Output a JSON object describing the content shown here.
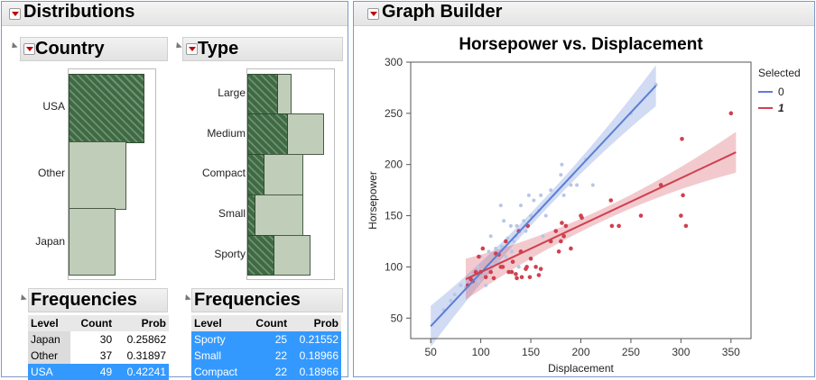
{
  "distributions": {
    "title": "Distributions",
    "country": {
      "title": "Country",
      "categories": [
        "USA",
        "Other",
        "Japan"
      ],
      "frequencies": {
        "title": "Frequencies",
        "headers": [
          "Level",
          "Count",
          "Prob"
        ],
        "rows": [
          {
            "level": "Japan",
            "count": "30",
            "prob": "0.25862",
            "selected": false
          },
          {
            "level": "Other",
            "count": "37",
            "prob": "0.31897",
            "selected": false
          },
          {
            "level": "USA",
            "count": "49",
            "prob": "0.42241",
            "selected": true
          }
        ]
      }
    },
    "type": {
      "title": "Type",
      "categories": [
        "Large",
        "Medium",
        "Compact",
        "Small",
        "Sporty"
      ],
      "frequencies": {
        "title": "Frequencies",
        "headers": [
          "Level",
          "Count",
          "Prob"
        ],
        "rows": [
          {
            "level": "Sporty",
            "count": "25",
            "prob": "0.21552",
            "selected": true
          },
          {
            "level": "Small",
            "count": "22",
            "prob": "0.18966",
            "selected": true
          },
          {
            "level": "Compact",
            "count": "22",
            "prob": "0.18966",
            "selected": true
          }
        ]
      }
    }
  },
  "graph_builder": {
    "title": "Graph Builder"
  },
  "colors": {
    "bar_fill": "#bfcdb9",
    "hatch": "#3f6a44",
    "series_0": "#5b7fd4",
    "series_1": "#d0404f",
    "selection": "#3399ff"
  },
  "chart_data": {
    "type": "scatter",
    "title": "Horsepower vs. Displacement",
    "xlabel": "Displacement",
    "ylabel": "Horsepower",
    "xlim": [
      30,
      370
    ],
    "ylim": [
      30,
      300
    ],
    "xticks": [
      50,
      100,
      150,
      200,
      250,
      300,
      350
    ],
    "yticks": [
      50,
      100,
      150,
      200,
      250,
      300
    ],
    "legend_title": "Selected",
    "legend_position": "right",
    "series": [
      {
        "name": "0",
        "color": "#5b7fd4",
        "points": [
          [
            63,
            58
          ],
          [
            70,
            67
          ],
          [
            74,
            73
          ],
          [
            80,
            82
          ],
          [
            85,
            80
          ],
          [
            90,
            92
          ],
          [
            92,
            85
          ],
          [
            95,
            90
          ],
          [
            97,
            100
          ],
          [
            98,
            86
          ],
          [
            100,
            95
          ],
          [
            100,
            110
          ],
          [
            102,
            97
          ],
          [
            105,
            82
          ],
          [
            107,
            100
          ],
          [
            108,
            115
          ],
          [
            110,
            130
          ],
          [
            112,
            102
          ],
          [
            115,
            118
          ],
          [
            118,
            105
          ],
          [
            120,
            160
          ],
          [
            121,
            120
          ],
          [
            123,
            145
          ],
          [
            125,
            110
          ],
          [
            127,
            128
          ],
          [
            130,
            140
          ],
          [
            131,
            115
          ],
          [
            133,
            125
          ],
          [
            135,
            130
          ],
          [
            136,
            140
          ],
          [
            138,
            100
          ],
          [
            140,
            160
          ],
          [
            143,
            145
          ],
          [
            145,
            135
          ],
          [
            148,
            170
          ],
          [
            150,
            150
          ],
          [
            153,
            165
          ],
          [
            158,
            155
          ],
          [
            160,
            170
          ],
          [
            162,
            130
          ],
          [
            165,
            150
          ],
          [
            170,
            175
          ],
          [
            180,
            190
          ],
          [
            181,
            200
          ],
          [
            183,
            170
          ],
          [
            190,
            180
          ],
          [
            196,
            180
          ],
          [
            205,
            205
          ],
          [
            212,
            180
          ],
          [
            250,
            250
          ],
          [
            275,
            278
          ]
        ],
        "fit": {
          "x": [
            50,
            275
          ],
          "y": [
            42,
            277
          ]
        }
      },
      {
        "name": "1",
        "color": "#d0404f",
        "points": [
          [
            87,
            82
          ],
          [
            90,
            88
          ],
          [
            92,
            86
          ],
          [
            95,
            95
          ],
          [
            98,
            110
          ],
          [
            100,
            95
          ],
          [
            102,
            118
          ],
          [
            105,
            90
          ],
          [
            110,
            95
          ],
          [
            113,
            89
          ],
          [
            115,
            113
          ],
          [
            118,
            112
          ],
          [
            120,
            100
          ],
          [
            122,
            100
          ],
          [
            125,
            125
          ],
          [
            128,
            95
          ],
          [
            131,
            95
          ],
          [
            132,
            105
          ],
          [
            135,
            93
          ],
          [
            136,
            89
          ],
          [
            138,
            135
          ],
          [
            140,
            115
          ],
          [
            141,
            90
          ],
          [
            145,
            98
          ],
          [
            146,
            100
          ],
          [
            147,
            140
          ],
          [
            149,
            90
          ],
          [
            150,
            108
          ],
          [
            155,
            100
          ],
          [
            158,
            92
          ],
          [
            160,
            98
          ],
          [
            170,
            125
          ],
          [
            175,
            135
          ],
          [
            178,
            115
          ],
          [
            180,
            125
          ],
          [
            181,
            143
          ],
          [
            183,
            130
          ],
          [
            185,
            140
          ],
          [
            190,
            118
          ],
          [
            200,
            150
          ],
          [
            201,
            148
          ],
          [
            230,
            165
          ],
          [
            231,
            140
          ],
          [
            238,
            140
          ],
          [
            260,
            150
          ],
          [
            280,
            180
          ],
          [
            300,
            150
          ],
          [
            301,
            225
          ],
          [
            302,
            170
          ],
          [
            305,
            140
          ],
          [
            350,
            250
          ]
        ],
        "fit": {
          "x": [
            85,
            355
          ],
          "y": [
            88,
            212
          ]
        }
      }
    ]
  }
}
